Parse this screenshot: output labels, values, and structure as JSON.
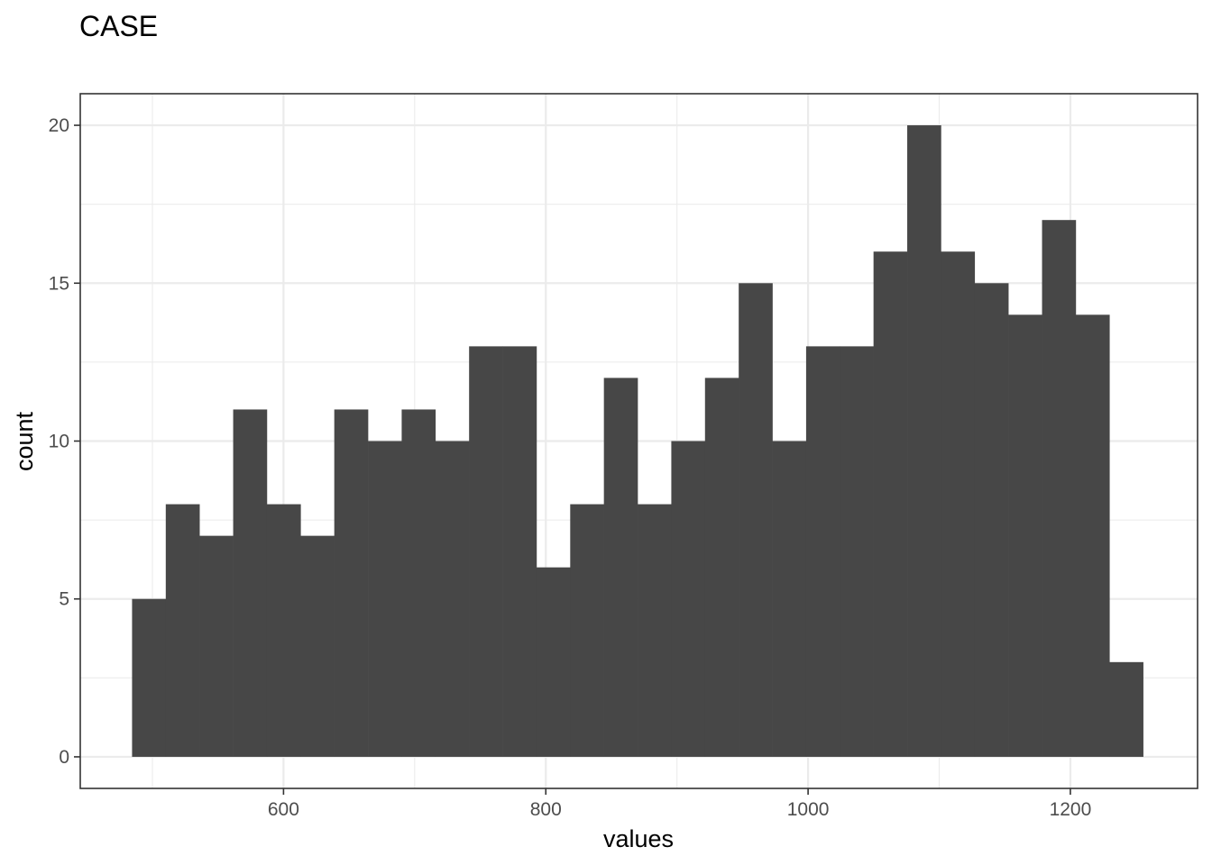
{
  "chart_data": {
    "type": "bar",
    "title": "CASE",
    "xlabel": "values",
    "ylabel": "count",
    "xlim": [
      445,
      1297
    ],
    "ylim": [
      -1,
      21
    ],
    "x_ticks": [
      600,
      800,
      1000,
      1200
    ],
    "x_minor_ticks": [
      500,
      700,
      900,
      1100
    ],
    "y_ticks": [
      0,
      5,
      10,
      15,
      20
    ],
    "y_minor_ticks": [
      2.5,
      7.5,
      12.5,
      17.5
    ],
    "grid": true,
    "legend": "none",
    "bar_color": "#474747",
    "bin_width": 25.7,
    "bins": [
      {
        "x_start": 484.5,
        "x_end": 510.2,
        "count": 5
      },
      {
        "x_start": 510.2,
        "x_end": 535.9,
        "count": 8
      },
      {
        "x_start": 535.9,
        "x_end": 561.6,
        "count": 7
      },
      {
        "x_start": 561.6,
        "x_end": 587.3,
        "count": 11
      },
      {
        "x_start": 587.3,
        "x_end": 613.0,
        "count": 8
      },
      {
        "x_start": 613.0,
        "x_end": 638.7,
        "count": 7
      },
      {
        "x_start": 638.7,
        "x_end": 664.4,
        "count": 11
      },
      {
        "x_start": 664.4,
        "x_end": 690.1,
        "count": 10
      },
      {
        "x_start": 690.1,
        "x_end": 715.8,
        "count": 11
      },
      {
        "x_start": 715.8,
        "x_end": 741.5,
        "count": 10
      },
      {
        "x_start": 741.5,
        "x_end": 767.2,
        "count": 13
      },
      {
        "x_start": 767.2,
        "x_end": 792.9,
        "count": 13
      },
      {
        "x_start": 792.9,
        "x_end": 818.6,
        "count": 6
      },
      {
        "x_start": 818.6,
        "x_end": 844.3,
        "count": 8
      },
      {
        "x_start": 844.3,
        "x_end": 870.0,
        "count": 12
      },
      {
        "x_start": 870.0,
        "x_end": 895.7,
        "count": 8
      },
      {
        "x_start": 895.7,
        "x_end": 921.4,
        "count": 10
      },
      {
        "x_start": 921.4,
        "x_end": 947.1,
        "count": 12
      },
      {
        "x_start": 947.1,
        "x_end": 972.8,
        "count": 15
      },
      {
        "x_start": 972.8,
        "x_end": 998.5,
        "count": 10
      },
      {
        "x_start": 998.5,
        "x_end": 1024.2,
        "count": 13
      },
      {
        "x_start": 1024.2,
        "x_end": 1049.9,
        "count": 13
      },
      {
        "x_start": 1049.9,
        "x_end": 1075.6,
        "count": 16
      },
      {
        "x_start": 1075.6,
        "x_end": 1101.3,
        "count": 20
      },
      {
        "x_start": 1101.3,
        "x_end": 1127.0,
        "count": 16
      },
      {
        "x_start": 1127.0,
        "x_end": 1152.7,
        "count": 15
      },
      {
        "x_start": 1152.7,
        "x_end": 1178.4,
        "count": 14
      },
      {
        "x_start": 1178.4,
        "x_end": 1204.1,
        "count": 17
      },
      {
        "x_start": 1204.1,
        "x_end": 1229.8,
        "count": 14
      },
      {
        "x_start": 1229.8,
        "x_end": 1255.5,
        "count": 3
      }
    ]
  }
}
